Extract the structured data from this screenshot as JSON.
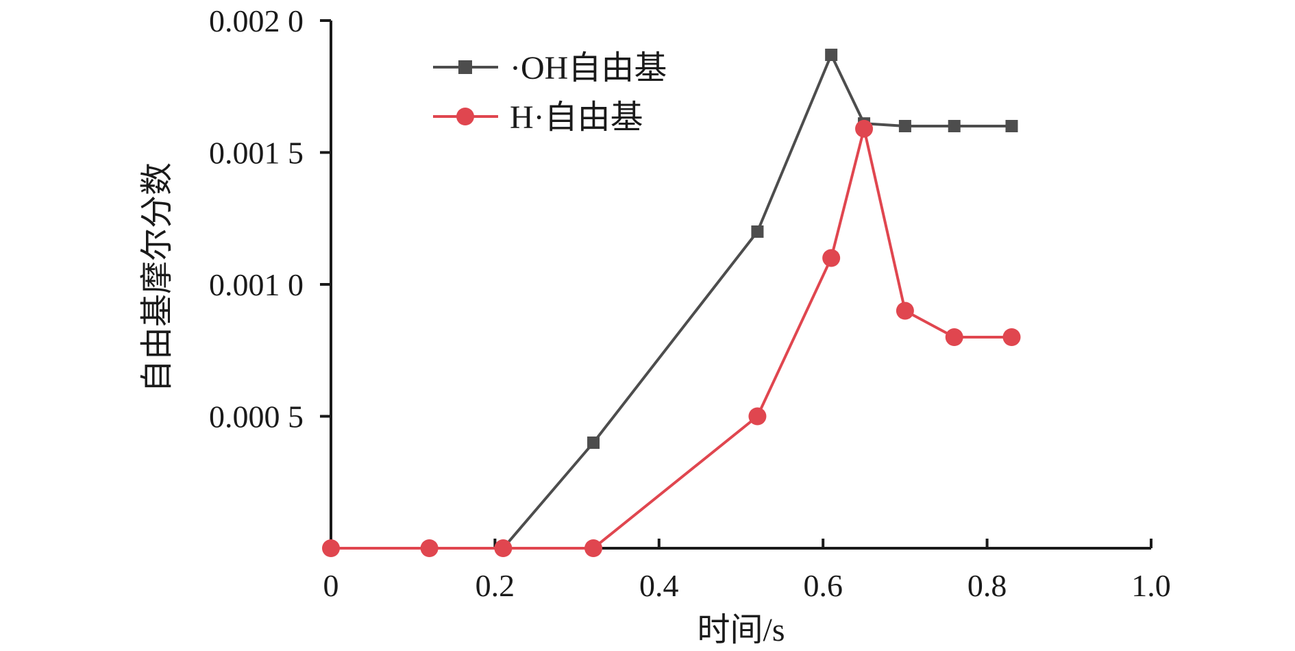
{
  "chart_data": {
    "type": "line",
    "xlabel": "时间/s",
    "ylabel": "自由基摩尔分数",
    "xlim": [
      0,
      1.0
    ],
    "ylim": [
      0,
      0.002
    ],
    "x_ticks": [
      "0",
      "0.2",
      "0.4",
      "0.6",
      "0.8",
      "1.0"
    ],
    "x_tick_values": [
      0,
      0.2,
      0.4,
      0.6,
      0.8,
      1.0
    ],
    "y_ticks": [
      "0.000 5",
      "0.001 0",
      "0.001 5",
      "0.002 0"
    ],
    "y_tick_values": [
      0.0005,
      0.001,
      0.0015,
      0.002
    ],
    "legend_position": "top-left",
    "grid": false,
    "series": [
      {
        "name": "·OH自由基",
        "marker": "square",
        "color": "#4d4d4d",
        "x": [
          0.21,
          0.32,
          0.52,
          0.61,
          0.65,
          0.7,
          0.76,
          0.83
        ],
        "y": [
          0.0,
          0.0004,
          0.0012,
          0.00187,
          0.00161,
          0.0016,
          0.0016,
          0.0016
        ]
      },
      {
        "name": "H·自由基",
        "marker": "circle",
        "color": "#e0464f",
        "x": [
          0.0,
          0.12,
          0.21,
          0.32,
          0.52,
          0.61,
          0.65,
          0.7,
          0.76,
          0.83
        ],
        "y": [
          0.0,
          0.0,
          0.0,
          0.0,
          0.0005,
          0.0011,
          0.00159,
          0.0009,
          0.0008,
          0.0008
        ]
      }
    ]
  }
}
